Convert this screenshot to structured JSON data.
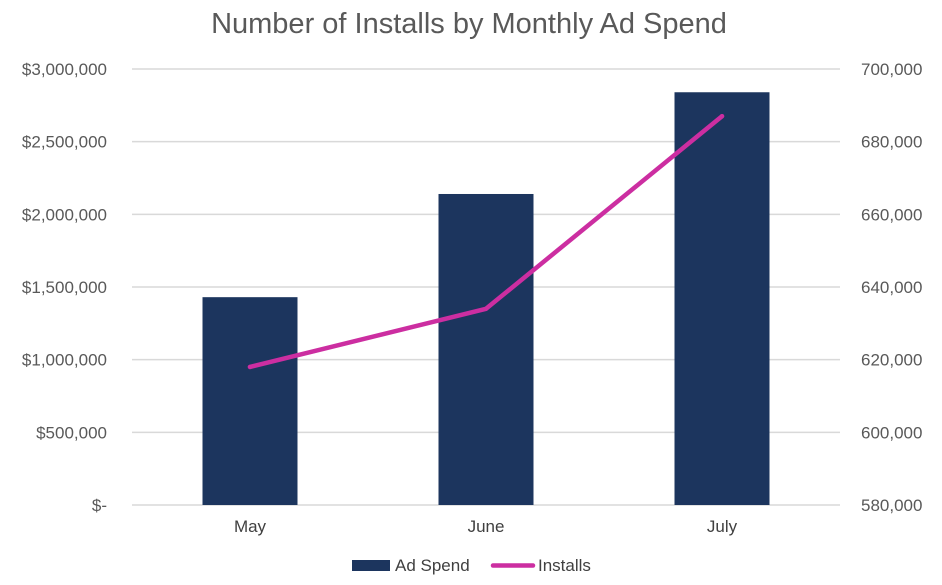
{
  "chart_data": {
    "type": "bar",
    "title": "Number of Installs by Monthly Ad Spend",
    "categories": [
      "May",
      "June",
      "July"
    ],
    "series": [
      {
        "name": "Ad Spend",
        "kind": "bar",
        "axis": "left",
        "color": "#1c355e",
        "values": [
          1430000,
          2140000,
          2840000
        ]
      },
      {
        "name": "Installs",
        "kind": "line",
        "axis": "right",
        "color": "#cc2ea1",
        "values": [
          618000,
          634000,
          687000
        ]
      }
    ],
    "y_left": {
      "min": 0,
      "max": 3000000,
      "ticks": [
        0,
        500000,
        1000000,
        1500000,
        2000000,
        2500000,
        3000000
      ],
      "tick_labels": [
        "$-",
        "$500,000",
        "$1,000,000",
        "$1,500,000",
        "$2,000,000",
        "$2,500,000",
        "$3,000,000"
      ]
    },
    "y_right": {
      "min": 580000,
      "max": 700000,
      "ticks": [
        580000,
        600000,
        620000,
        640000,
        660000,
        680000,
        700000
      ],
      "tick_labels": [
        "580,000",
        "600,000",
        "620,000",
        "640,000",
        "660,000",
        "680,000",
        "700,000"
      ]
    },
    "grid": true,
    "legend_position": "bottom-center",
    "legend": [
      "Ad Spend",
      "Installs"
    ]
  }
}
